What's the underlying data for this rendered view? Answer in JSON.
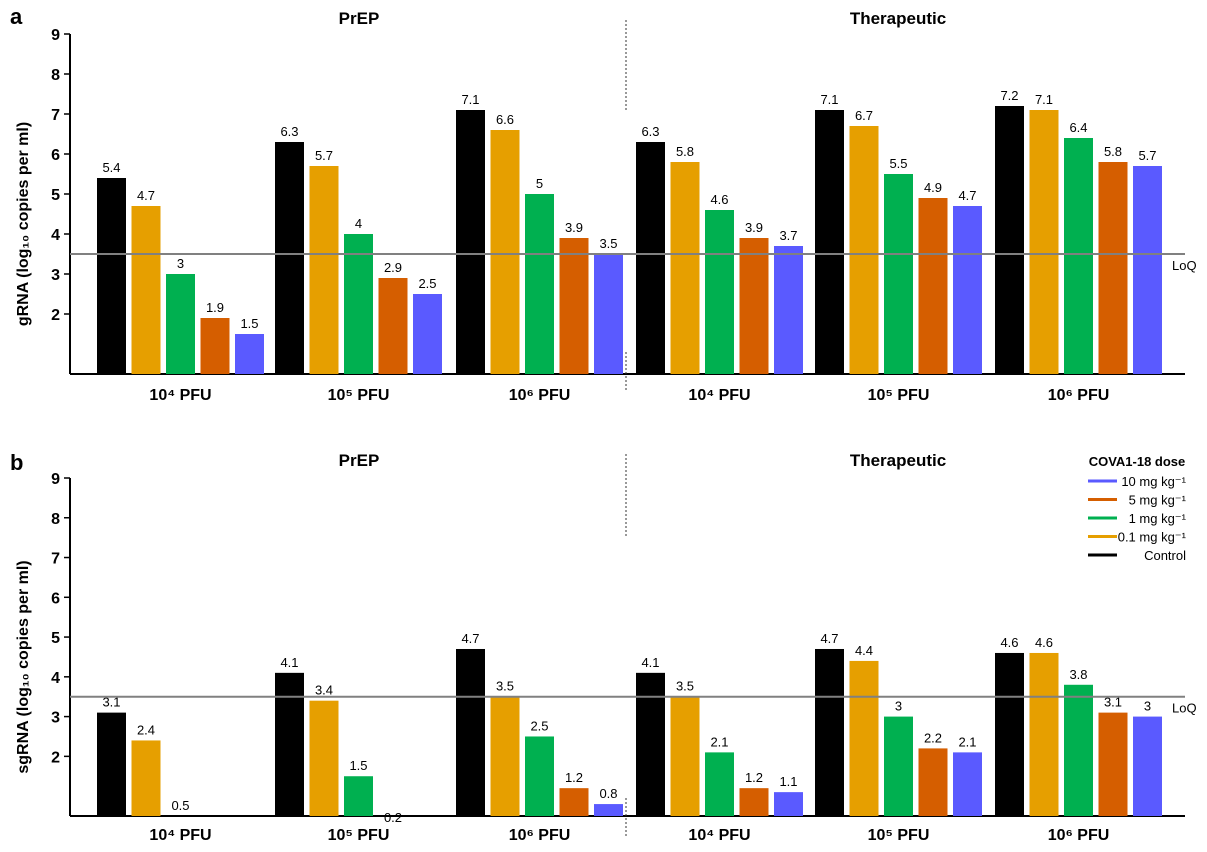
{
  "legend": {
    "title": "COVA1-18 dose",
    "entries": [
      {
        "label": "10 mg kg⁻¹",
        "series": "10 mg kg⁻¹"
      },
      {
        "label": "5 mg kg⁻¹",
        "series": "5 mg kg⁻¹"
      },
      {
        "label": "1 mg kg⁻¹",
        "series": "1 mg kg⁻¹"
      },
      {
        "label": "0.1 mg kg⁻¹",
        "series": "0.1 mg kg⁻¹"
      },
      {
        "label": "Control",
        "series": "Control"
      }
    ]
  },
  "colors": {
    "Control": "#000000",
    "0.1 mg kg⁻¹": "#E69F00",
    "1 mg kg⁻¹": "#00B050",
    "5 mg kg⁻¹": "#D55E00",
    "10 mg kg⁻¹": "#5A5AFF",
    "loq_line": "#808080"
  },
  "chart_data": [
    {
      "type": "bar",
      "panel": "a",
      "ylabel": "gRNA (log₁₀ copies per ml)",
      "ylim": [
        0.5,
        9
      ],
      "yticks": [
        2,
        3,
        4,
        5,
        6,
        7,
        8,
        9
      ],
      "groups": [
        "PrEP",
        "Therapeutic"
      ],
      "categories": [
        "10⁴ PFU",
        "10⁵ PFU",
        "10⁶ PFU",
        "10⁴ PFU",
        "10⁵ PFU",
        "10⁶ PFU"
      ],
      "reference_line": {
        "label": "LoQ",
        "value": 3.5
      },
      "series": [
        {
          "name": "Control",
          "values": [
            5.4,
            6.3,
            7.1,
            6.3,
            7.1,
            7.2
          ]
        },
        {
          "name": "0.1 mg kg⁻¹",
          "values": [
            4.7,
            5.7,
            6.6,
            5.8,
            6.7,
            7.1
          ]
        },
        {
          "name": "1 mg kg⁻¹",
          "values": [
            3,
            4,
            5,
            4.6,
            5.5,
            6.4
          ]
        },
        {
          "name": "5 mg kg⁻¹",
          "values": [
            1.9,
            2.9,
            3.9,
            3.9,
            4.9,
            5.8
          ]
        },
        {
          "name": "10 mg kg⁻¹",
          "values": [
            1.5,
            2.5,
            3.5,
            3.7,
            4.7,
            5.7
          ]
        }
      ]
    },
    {
      "type": "bar",
      "panel": "b",
      "ylabel": "sgRNA (log₁₀ copies per ml)",
      "ylim": [
        0.5,
        9
      ],
      "yticks": [
        2,
        3,
        4,
        5,
        6,
        7,
        8,
        9
      ],
      "groups": [
        "PrEP",
        "Therapeutic"
      ],
      "categories": [
        "10⁴ PFU",
        "10⁵ PFU",
        "10⁶ PFU",
        "10⁴ PFU",
        "10⁵ PFU",
        "10⁶ PFU"
      ],
      "reference_line": {
        "label": "LoQ",
        "value": 3.5
      },
      "series": [
        {
          "name": "Control",
          "values": [
            3.1,
            4.1,
            4.7,
            4.1,
            4.7,
            4.6
          ]
        },
        {
          "name": "0.1 mg kg⁻¹",
          "values": [
            2.4,
            3.4,
            3.5,
            3.5,
            4.4,
            4.6
          ]
        },
        {
          "name": "1 mg kg⁻¹",
          "values": [
            0.5,
            1.5,
            2.5,
            2.1,
            3,
            3.8
          ]
        },
        {
          "name": "5 mg kg⁻¹",
          "values": [
            null,
            0.2,
            1.2,
            1.2,
            2.2,
            3.1
          ]
        },
        {
          "name": "10 mg kg⁻¹",
          "values": [
            null,
            null,
            0.8,
            1.1,
            2.1,
            3
          ]
        }
      ]
    }
  ]
}
